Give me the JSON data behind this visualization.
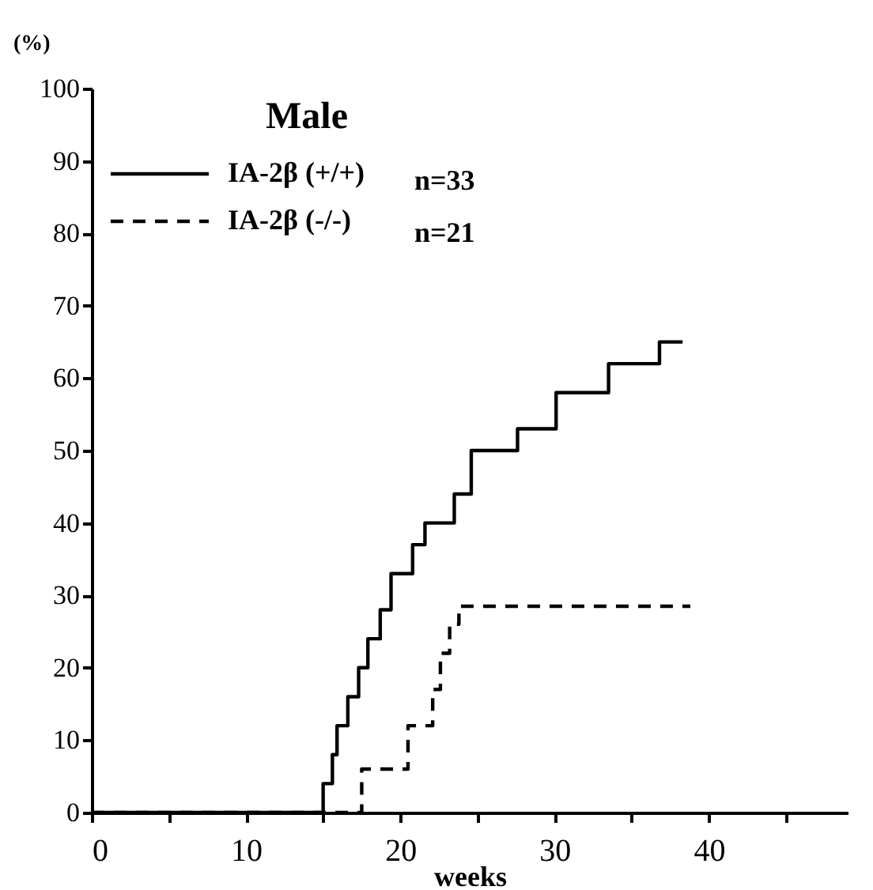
{
  "chart_data": {
    "type": "step",
    "ylabel": "(%)",
    "xlabel": "weeks",
    "legend_title": "Male",
    "xlim": [
      0,
      49
    ],
    "xticks": [
      0,
      {
        "value": 5,
        "label": null
      },
      10,
      {
        "value": 15,
        "label": null
      },
      20,
      {
        "value": 25,
        "label": null
      },
      30,
      {
        "value": 35,
        "label": null
      },
      40,
      {
        "value": 45,
        "label": null
      }
    ],
    "ylim": [
      0,
      100
    ],
    "yticks": [
      0,
      10,
      20,
      30,
      40,
      50,
      60,
      70,
      80,
      90,
      100
    ],
    "grid": false,
    "legend": "top left",
    "series": [
      {
        "name": "IA-2β (+/+)",
        "color": "#000000",
        "line_style": "solid",
        "x": [
          0,
          15.0,
          15.6,
          15.9,
          16.6,
          17.3,
          17.9,
          18.7,
          19.4,
          20.8,
          21.6,
          23.5,
          24.6,
          27.6,
          30.1,
          33.5,
          36.8,
          38.3
        ],
        "values": [
          0,
          4,
          8,
          12,
          16,
          20,
          24,
          28,
          33,
          37,
          40,
          44,
          50,
          53,
          58,
          62,
          65,
          65
        ]
      },
      {
        "name": "IA-2β (-/-)",
        "color": "#000000",
        "line_style": "dashed",
        "x": [
          0,
          17.5,
          20.5,
          22.1,
          22.6,
          23.2,
          23.8,
          38.8
        ],
        "values": [
          0,
          6,
          12,
          17,
          22,
          26,
          28.5,
          28.5
        ]
      }
    ],
    "annotations": [
      "n=33",
      "n=21"
    ]
  }
}
